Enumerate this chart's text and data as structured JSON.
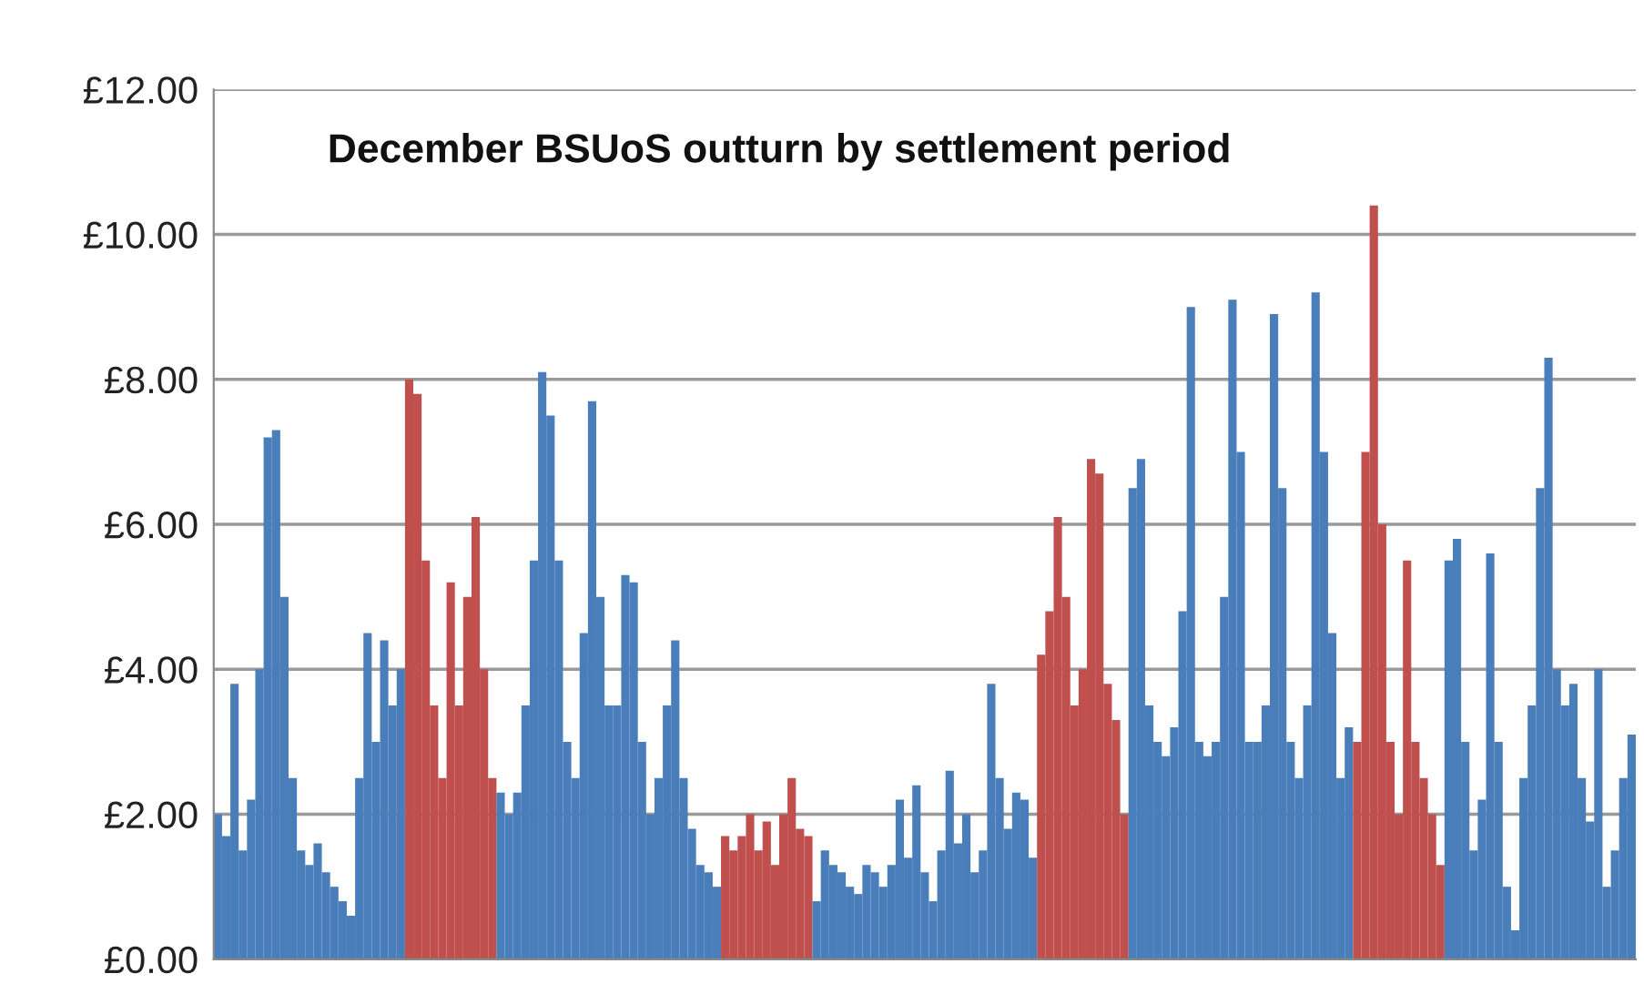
{
  "chart_data": {
    "type": "bar",
    "title": "December BSUoS outturn by settlement period",
    "categories": [
      null,
      null,
      null,
      null,
      null,
      null,
      null,
      null,
      null,
      null,
      null,
      null,
      null,
      null,
      null,
      null,
      null,
      null,
      null,
      null,
      null,
      null,
      null,
      null,
      null,
      null,
      null,
      null,
      null,
      null,
      null,
      null,
      null,
      null,
      null,
      null,
      null,
      null,
      null,
      null,
      null,
      null,
      null,
      null,
      null,
      null,
      null,
      null,
      null,
      null,
      null,
      null,
      null,
      null,
      null,
      null,
      null,
      null,
      null,
      null,
      null,
      null,
      null,
      null,
      null,
      null,
      null,
      null,
      null,
      null,
      null,
      null,
      null,
      null,
      null,
      null,
      null,
      null,
      null,
      null,
      null,
      null,
      null,
      null,
      null,
      null,
      null,
      null,
      null,
      null,
      null,
      null,
      null,
      null,
      null,
      null,
      null,
      null,
      null,
      null,
      null,
      null,
      null,
      null,
      null,
      null,
      null,
      null,
      null,
      null,
      null,
      null,
      null,
      null,
      null,
      null,
      null,
      null,
      null,
      null,
      null,
      null,
      null,
      null,
      null,
      null,
      null,
      null,
      null,
      null,
      null,
      null,
      null,
      null,
      null,
      null,
      null,
      null,
      null,
      null,
      null,
      null,
      null,
      null,
      null,
      null,
      null,
      null,
      null,
      null,
      null,
      null,
      null,
      null,
      null,
      null,
      null,
      null,
      null,
      null,
      null,
      null,
      null,
      null,
      null,
      null,
      null,
      null,
      null,
      null,
      null
    ],
    "values": [
      2.0,
      1.7,
      3.8,
      1.5,
      2.2,
      4.0,
      7.2,
      7.3,
      5.0,
      2.5,
      1.5,
      1.3,
      1.6,
      1.2,
      1.0,
      0.8,
      0.6,
      2.5,
      4.5,
      3.0,
      4.4,
      3.5,
      4.0,
      8.0,
      7.8,
      5.5,
      3.5,
      2.5,
      5.2,
      3.5,
      5.0,
      6.1,
      4.0,
      2.5,
      2.3,
      2.0,
      2.3,
      3.5,
      5.5,
      8.1,
      7.5,
      5.5,
      3.0,
      2.5,
      4.5,
      7.7,
      5.0,
      3.5,
      3.5,
      5.3,
      5.2,
      3.0,
      2.0,
      2.5,
      3.5,
      4.4,
      2.5,
      1.8,
      1.3,
      1.2,
      1.0,
      1.7,
      1.5,
      1.7,
      2.0,
      1.5,
      1.9,
      1.3,
      2.0,
      2.5,
      1.8,
      1.7,
      0.8,
      1.5,
      1.3,
      1.2,
      1.0,
      0.9,
      1.3,
      1.2,
      1.0,
      1.3,
      2.2,
      1.4,
      2.4,
      1.2,
      0.8,
      1.5,
      2.6,
      1.6,
      2.0,
      1.2,
      1.5,
      3.8,
      2.5,
      1.8,
      2.3,
      2.2,
      1.4,
      4.2,
      4.8,
      6.1,
      5.0,
      3.5,
      4.0,
      6.9,
      6.7,
      3.8,
      3.3,
      2.0,
      6.5,
      6.9,
      3.5,
      3.0,
      2.8,
      3.2,
      4.8,
      9.0,
      3.0,
      2.8,
      3.0,
      5.0,
      9.1,
      7.0,
      3.0,
      3.0,
      3.5,
      8.9,
      6.5,
      3.0,
      2.5,
      3.5,
      9.2,
      7.0,
      4.5,
      2.5,
      3.2,
      3.0,
      7.0,
      10.4,
      6.0,
      3.0,
      2.0,
      5.5,
      3.0,
      2.5,
      2.0,
      1.3,
      5.5,
      5.8,
      3.0,
      1.5,
      2.2,
      5.6,
      3.0,
      1.0,
      0.4,
      2.5,
      3.5,
      6.5,
      8.3,
      4.0,
      3.5,
      3.8,
      2.5,
      1.9,
      4.0,
      1.0,
      1.5,
      2.5,
      3.1
    ],
    "colors": [
      "#4a7ebb",
      "#4a7ebb",
      "#4a7ebb",
      "#4a7ebb",
      "#4a7ebb",
      "#4a7ebb",
      "#4a7ebb",
      "#4a7ebb",
      "#4a7ebb",
      "#4a7ebb",
      "#4a7ebb",
      "#4a7ebb",
      "#4a7ebb",
      "#4a7ebb",
      "#4a7ebb",
      "#4a7ebb",
      "#4a7ebb",
      "#4a7ebb",
      "#4a7ebb",
      "#4a7ebb",
      "#4a7ebb",
      "#4a7ebb",
      "#4a7ebb",
      "#c0504d",
      "#c0504d",
      "#c0504d",
      "#c0504d",
      "#c0504d",
      "#c0504d",
      "#c0504d",
      "#c0504d",
      "#c0504d",
      "#c0504d",
      "#c0504d",
      "#4a7ebb",
      "#4a7ebb",
      "#4a7ebb",
      "#4a7ebb",
      "#4a7ebb",
      "#4a7ebb",
      "#4a7ebb",
      "#4a7ebb",
      "#4a7ebb",
      "#4a7ebb",
      "#4a7ebb",
      "#4a7ebb",
      "#4a7ebb",
      "#4a7ebb",
      "#4a7ebb",
      "#4a7ebb",
      "#4a7ebb",
      "#4a7ebb",
      "#4a7ebb",
      "#4a7ebb",
      "#4a7ebb",
      "#4a7ebb",
      "#4a7ebb",
      "#4a7ebb",
      "#4a7ebb",
      "#4a7ebb",
      "#4a7ebb",
      "#c0504d",
      "#c0504d",
      "#c0504d",
      "#c0504d",
      "#c0504d",
      "#c0504d",
      "#c0504d",
      "#c0504d",
      "#c0504d",
      "#c0504d",
      "#c0504d",
      "#4a7ebb",
      "#4a7ebb",
      "#4a7ebb",
      "#4a7ebb",
      "#4a7ebb",
      "#4a7ebb",
      "#4a7ebb",
      "#4a7ebb",
      "#4a7ebb",
      "#4a7ebb",
      "#4a7ebb",
      "#4a7ebb",
      "#4a7ebb",
      "#4a7ebb",
      "#4a7ebb",
      "#4a7ebb",
      "#4a7ebb",
      "#4a7ebb",
      "#4a7ebb",
      "#4a7ebb",
      "#4a7ebb",
      "#4a7ebb",
      "#4a7ebb",
      "#4a7ebb",
      "#4a7ebb",
      "#4a7ebb",
      "#4a7ebb",
      "#c0504d",
      "#c0504d",
      "#c0504d",
      "#c0504d",
      "#c0504d",
      "#c0504d",
      "#c0504d",
      "#c0504d",
      "#c0504d",
      "#c0504d",
      "#c0504d",
      "#4a7ebb",
      "#4a7ebb",
      "#4a7ebb",
      "#4a7ebb",
      "#4a7ebb",
      "#4a7ebb",
      "#4a7ebb",
      "#4a7ebb",
      "#4a7ebb",
      "#4a7ebb",
      "#4a7ebb",
      "#4a7ebb",
      "#4a7ebb",
      "#4a7ebb",
      "#4a7ebb",
      "#4a7ebb",
      "#4a7ebb",
      "#4a7ebb",
      "#4a7ebb",
      "#4a7ebb",
      "#4a7ebb",
      "#4a7ebb",
      "#4a7ebb",
      "#4a7ebb",
      "#4a7ebb",
      "#4a7ebb",
      "#4a7ebb",
      "#c0504d",
      "#c0504d",
      "#c0504d",
      "#c0504d",
      "#c0504d",
      "#c0504d",
      "#c0504d",
      "#c0504d",
      "#c0504d",
      "#c0504d",
      "#c0504d",
      "#4a7ebb",
      "#4a7ebb",
      "#4a7ebb",
      "#4a7ebb",
      "#4a7ebb",
      "#4a7ebb",
      "#4a7ebb",
      "#4a7ebb",
      "#4a7ebb",
      "#4a7ebb",
      "#4a7ebb",
      "#4a7ebb",
      "#4a7ebb",
      "#4a7ebb",
      "#4a7ebb",
      "#4a7ebb",
      "#4a7ebb",
      "#4a7ebb",
      "#4a7ebb",
      "#4a7ebb",
      "#4a7ebb",
      "#4a7ebb",
      "#4a7ebb"
    ],
    "ylim": [
      0,
      12
    ],
    "yticks": [
      {
        "value": 0,
        "label": "£0.00"
      },
      {
        "value": 2,
        "label": "£2.00"
      },
      {
        "value": 4,
        "label": "£4.00"
      },
      {
        "value": 6,
        "label": "£6.00"
      },
      {
        "value": 8,
        "label": "£8.00"
      },
      {
        "value": 10,
        "label": "£10.00"
      },
      {
        "value": 12,
        "label": "£12.00"
      }
    ],
    "grid": "y"
  }
}
